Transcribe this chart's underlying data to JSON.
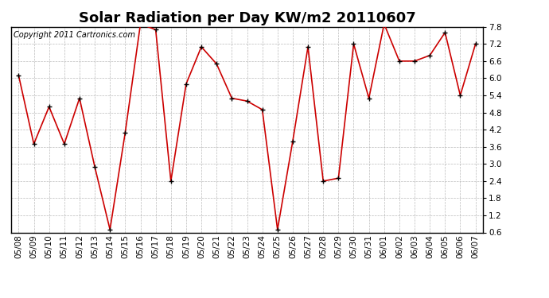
{
  "title": "Solar Radiation per Day KW/m2 20110607",
  "copyright_text": "Copyright 2011 Cartronics.com",
  "x_labels": [
    "05/08",
    "05/09",
    "05/10",
    "05/11",
    "05/12",
    "05/13",
    "05/14",
    "05/15",
    "05/16",
    "05/17",
    "05/18",
    "05/19",
    "05/20",
    "05/21",
    "05/22",
    "05/23",
    "05/24",
    "05/25",
    "05/26",
    "05/27",
    "05/28",
    "05/29",
    "05/30",
    "05/31",
    "06/01",
    "06/02",
    "06/03",
    "06/04",
    "06/05",
    "06/06",
    "06/07"
  ],
  "y_values": [
    6.1,
    3.7,
    5.0,
    3.7,
    5.3,
    2.9,
    0.7,
    4.1,
    7.9,
    7.7,
    2.4,
    5.8,
    7.1,
    6.5,
    5.3,
    5.2,
    4.9,
    0.7,
    3.8,
    7.1,
    2.4,
    2.5,
    7.2,
    5.3,
    7.9,
    6.6,
    6.6,
    6.8,
    7.6,
    5.4,
    7.2
  ],
  "line_color": "#cc0000",
  "marker_color": "#000000",
  "bg_color": "#ffffff",
  "grid_color": "#aaaaaa",
  "ylim": [
    0.6,
    7.8
  ],
  "yticks": [
    0.6,
    1.2,
    1.8,
    2.4,
    3.0,
    3.6,
    4.2,
    4.8,
    5.4,
    6.0,
    6.6,
    7.2,
    7.8
  ],
  "title_fontsize": 13,
  "copyright_fontsize": 7,
  "tick_fontsize": 7.5
}
